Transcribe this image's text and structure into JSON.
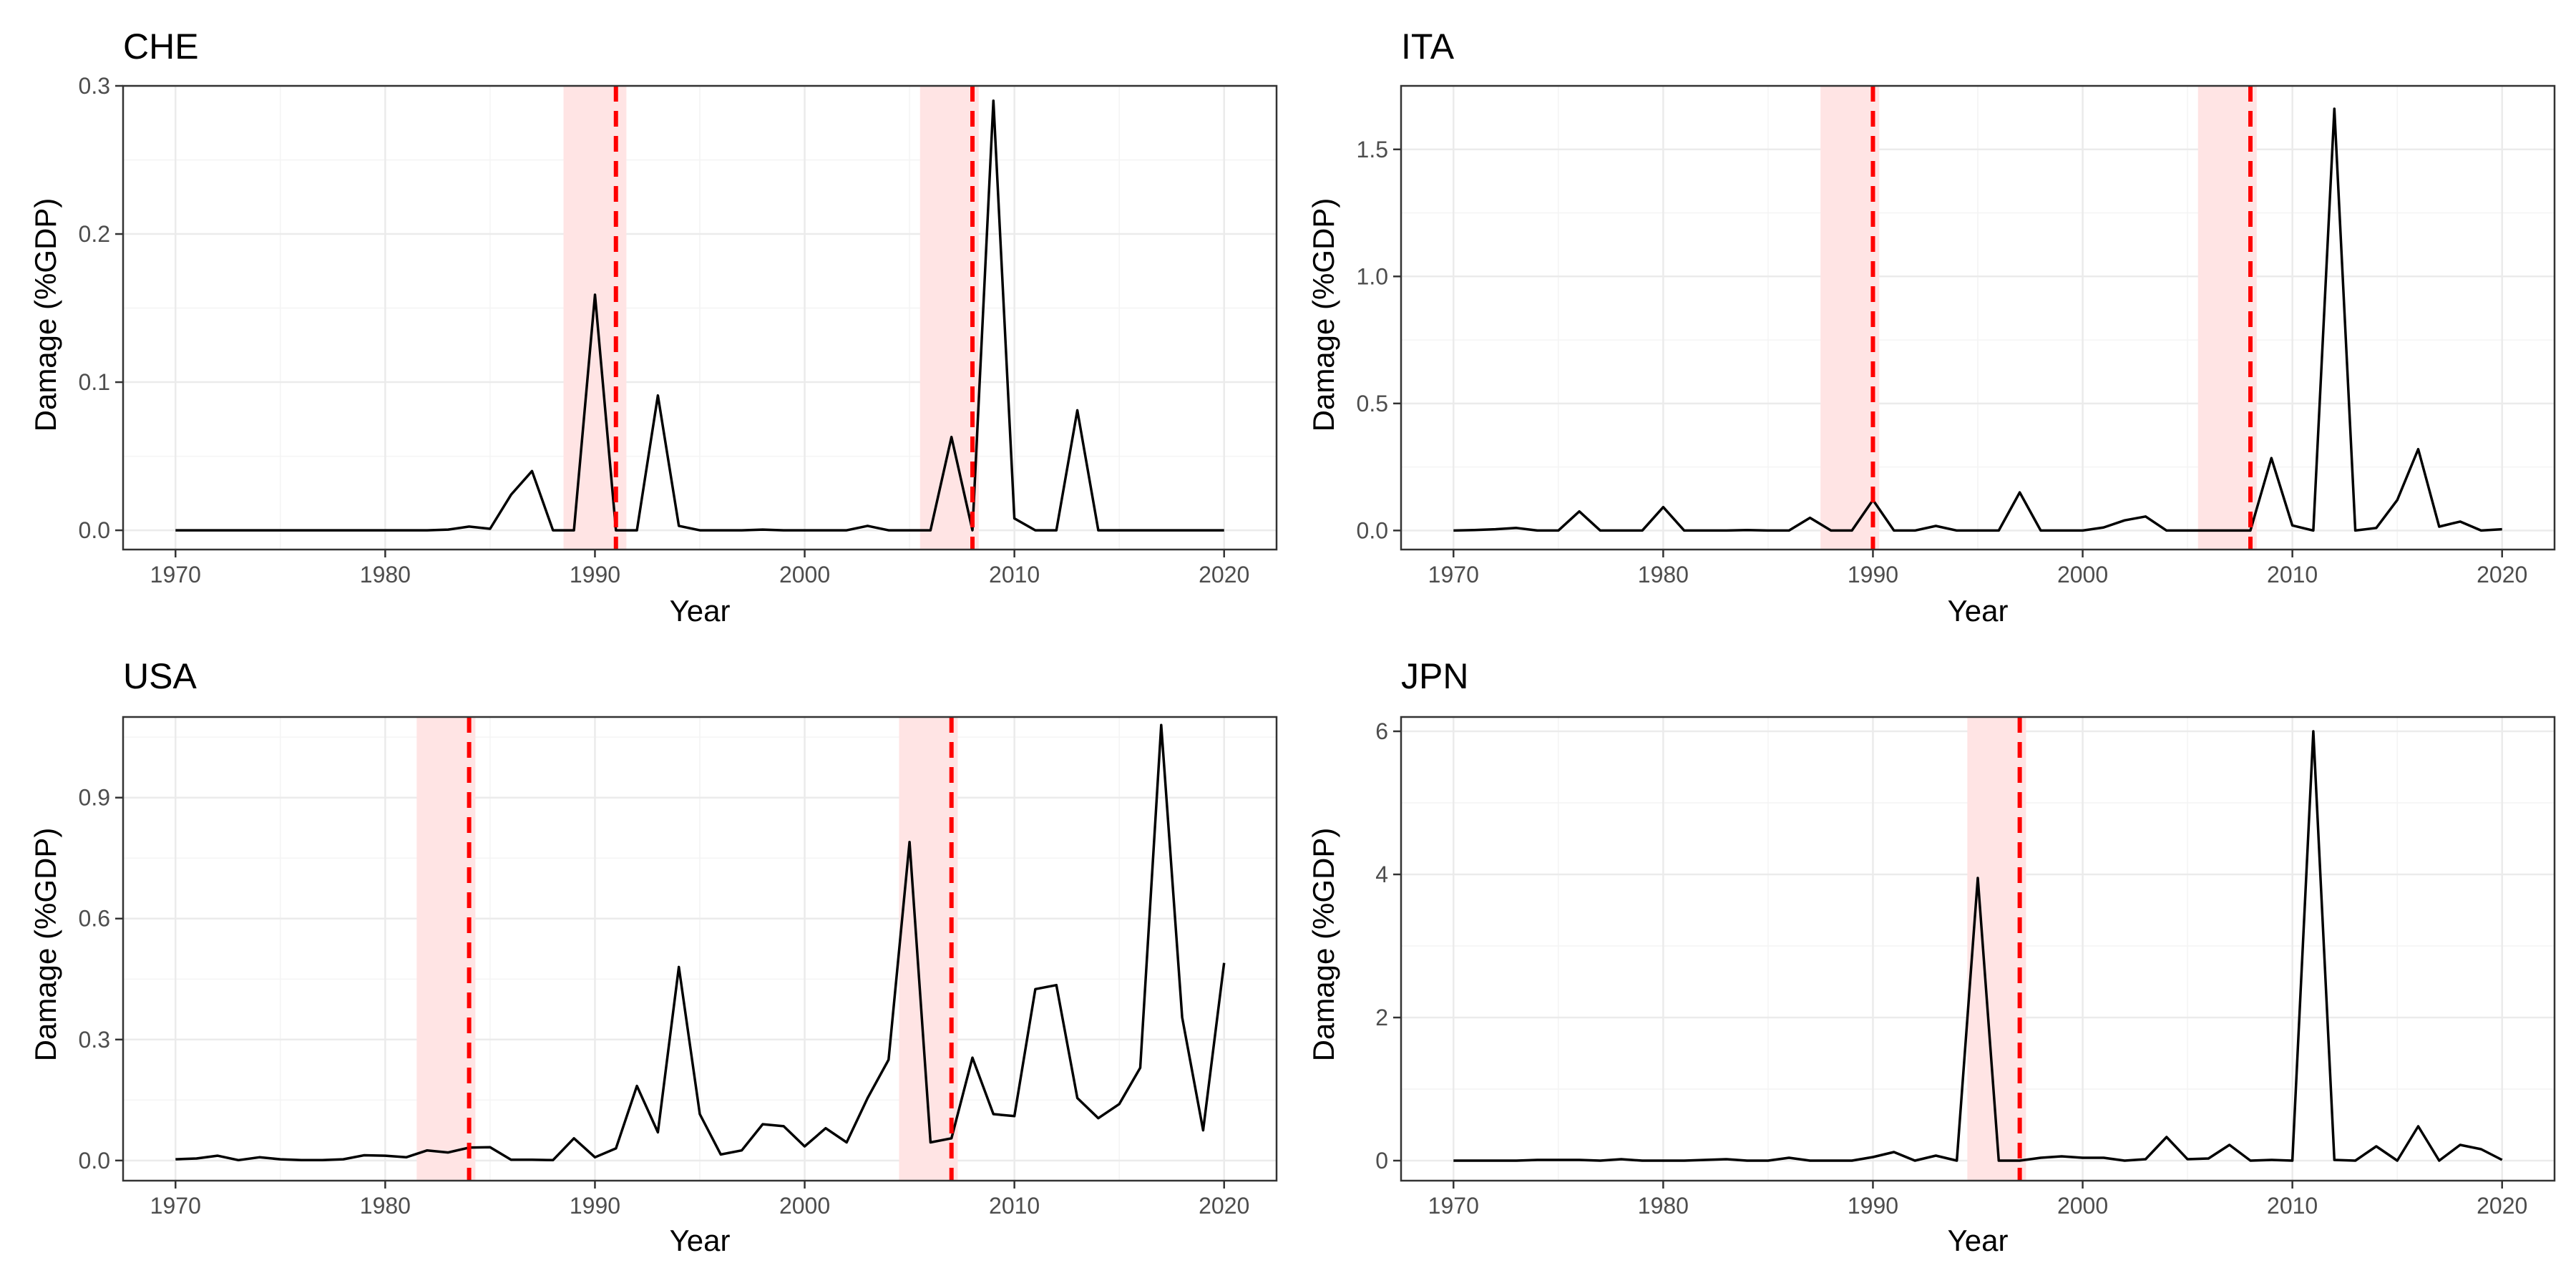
{
  "colors": {
    "line": "#000000",
    "crisis_line": "#ff0000",
    "crisis_band": "#ffe4e4",
    "grid_major": "#ebebeb",
    "grid_minor": "#f4f4f4",
    "panel_border": "#333333",
    "tick_text": "#4d4d4d"
  },
  "chart_data": [
    {
      "type": "line",
      "title": "CHE",
      "xlabel": "Year",
      "ylabel": "Damage (%GDP)",
      "xlim": [
        1967.5,
        2022.5
      ],
      "ylim": [
        -0.013,
        0.3
      ],
      "x_ticks": [
        1970,
        1980,
        1990,
        2000,
        2010,
        2020
      ],
      "x_tick_labels": [
        "1970",
        "1980",
        "1990",
        "2000",
        "2010",
        "2020"
      ],
      "y_ticks": [
        0.0,
        0.1,
        0.2,
        0.3
      ],
      "y_tick_labels": [
        "0.0",
        "0.1",
        "0.2",
        "0.3"
      ],
      "grid": true,
      "crisis_bands": [
        [
          1988.5,
          1991.5
        ],
        [
          2005.5,
          2008.3
        ]
      ],
      "crisis_lines": [
        1991,
        2008
      ],
      "series": [
        {
          "x": [
            1970,
            1971,
            1972,
            1973,
            1974,
            1975,
            1976,
            1977,
            1978,
            1979,
            1980,
            1981,
            1982,
            1983,
            1984,
            1985,
            1986,
            1987,
            1988,
            1989,
            1990,
            1991,
            1992,
            1993,
            1994,
            1995,
            1996,
            1997,
            1998,
            1999,
            2000,
            2001,
            2002,
            2003,
            2004,
            2005,
            2006,
            2007,
            2008,
            2009,
            2010,
            2011,
            2012,
            2013,
            2014,
            2015,
            2016,
            2017,
            2018,
            2019,
            2020
          ],
          "values": [
            0,
            0,
            0,
            0,
            0,
            0,
            0,
            0,
            0,
            0,
            0,
            0,
            0,
            0.0005,
            0.0025,
            0.001,
            0.024,
            0.04,
            0,
            0,
            0.159,
            0,
            0,
            0.091,
            0.003,
            0,
            0,
            0,
            0.0005,
            0,
            0,
            0,
            0,
            0.003,
            0,
            0,
            0,
            0.063,
            0,
            0.29,
            0.008,
            0,
            0,
            0.081,
            0,
            0,
            0,
            0,
            0,
            0,
            0
          ]
        }
      ]
    },
    {
      "type": "line",
      "title": "ITA",
      "xlabel": "Year",
      "ylabel": "Damage (%GDP)",
      "xlim": [
        1967.5,
        2022.5
      ],
      "ylim": [
        -0.075,
        1.75
      ],
      "x_ticks": [
        1970,
        1980,
        1990,
        2000,
        2010,
        2020
      ],
      "x_tick_labels": [
        "1970",
        "1980",
        "1990",
        "2000",
        "2010",
        "2020"
      ],
      "y_ticks": [
        0.0,
        0.5,
        1.0,
        1.5
      ],
      "y_tick_labels": [
        "0.0",
        "0.5",
        "1.0",
        "1.5"
      ],
      "grid": true,
      "crisis_bands": [
        [
          1987.5,
          1990.3
        ],
        [
          2005.5,
          2008.3
        ]
      ],
      "crisis_lines": [
        1990,
        2008
      ],
      "series": [
        {
          "x": [
            1970,
            1971,
            1972,
            1973,
            1974,
            1975,
            1976,
            1977,
            1978,
            1979,
            1980,
            1981,
            1982,
            1983,
            1984,
            1985,
            1986,
            1987,
            1988,
            1989,
            1990,
            1991,
            1992,
            1993,
            1994,
            1995,
            1996,
            1997,
            1998,
            1999,
            2000,
            2001,
            2002,
            2003,
            2004,
            2005,
            2006,
            2007,
            2008,
            2009,
            2010,
            2011,
            2012,
            2013,
            2014,
            2015,
            2016,
            2017,
            2018,
            2019,
            2020
          ],
          "values": [
            0,
            0.002,
            0.005,
            0.01,
            0,
            0,
            0.075,
            0,
            0,
            0,
            0.092,
            0,
            0,
            0,
            0.002,
            0,
            0,
            0.05,
            0,
            0,
            0.12,
            0,
            0,
            0.018,
            0,
            0,
            0,
            0.15,
            0,
            0,
            0,
            0.012,
            0.04,
            0.055,
            0,
            0,
            0,
            0,
            0,
            0.285,
            0.02,
            0,
            1.66,
            0,
            0.01,
            0.12,
            0.32,
            0.015,
            0.035,
            0,
            0.005
          ]
        }
      ]
    },
    {
      "type": "line",
      "title": "USA",
      "xlabel": "Year",
      "ylabel": "Damage (%GDP)",
      "xlim": [
        1967.5,
        2022.5
      ],
      "ylim": [
        -0.05,
        1.1
      ],
      "x_ticks": [
        1970,
        1980,
        1990,
        2000,
        2010,
        2020
      ],
      "x_tick_labels": [
        "1970",
        "1980",
        "1990",
        "2000",
        "2010",
        "2020"
      ],
      "y_ticks": [
        0.0,
        0.3,
        0.6,
        0.9
      ],
      "y_tick_labels": [
        "0.0",
        "0.3",
        "0.6",
        "0.9"
      ],
      "grid": true,
      "crisis_bands": [
        [
          1981.5,
          1984.3
        ],
        [
          2004.5,
          2007.3
        ]
      ],
      "crisis_lines": [
        1984,
        2007
      ],
      "series": [
        {
          "x": [
            1970,
            1971,
            1972,
            1973,
            1974,
            1975,
            1976,
            1977,
            1978,
            1979,
            1980,
            1981,
            1982,
            1983,
            1984,
            1985,
            1986,
            1987,
            1988,
            1989,
            1990,
            1991,
            1992,
            1993,
            1994,
            1995,
            1996,
            1997,
            1998,
            1999,
            2000,
            2001,
            2002,
            2003,
            2004,
            2005,
            2006,
            2007,
            2008,
            2009,
            2010,
            2011,
            2012,
            2013,
            2014,
            2015,
            2016,
            2017,
            2018,
            2019,
            2020
          ],
          "values": [
            0.003,
            0.005,
            0.012,
            0.001,
            0.008,
            0.003,
            0.001,
            0.001,
            0.003,
            0.013,
            0.012,
            0.008,
            0.025,
            0.02,
            0.032,
            0.033,
            0.002,
            0.002,
            0.001,
            0.055,
            0.008,
            0.03,
            0.185,
            0.07,
            0.48,
            0.115,
            0.015,
            0.025,
            0.09,
            0.085,
            0.035,
            0.08,
            0.045,
            0.155,
            0.25,
            0.79,
            0.045,
            0.055,
            0.255,
            0.115,
            0.11,
            0.425,
            0.435,
            0.155,
            0.105,
            0.14,
            0.23,
            1.08,
            0.355,
            0.075,
            0.49
          ]
        }
      ]
    },
    {
      "type": "line",
      "title": "JPN",
      "xlabel": "Year",
      "ylabel": "Damage (%GDP)",
      "xlim": [
        1967.5,
        2022.5
      ],
      "ylim": [
        -0.28,
        6.2
      ],
      "x_ticks": [
        1970,
        1980,
        1990,
        2000,
        2010,
        2020
      ],
      "x_tick_labels": [
        "1970",
        "1980",
        "1990",
        "2000",
        "2010",
        "2020"
      ],
      "y_ticks": [
        0,
        2,
        4,
        6
      ],
      "y_tick_labels": [
        "0",
        "2",
        "4",
        "6"
      ],
      "grid": true,
      "crisis_bands": [
        [
          1994.5,
          1997.3
        ]
      ],
      "crisis_lines": [
        1997
      ],
      "series": [
        {
          "x": [
            1970,
            1971,
            1972,
            1973,
            1974,
            1975,
            1976,
            1977,
            1978,
            1979,
            1980,
            1981,
            1982,
            1983,
            1984,
            1985,
            1986,
            1987,
            1988,
            1989,
            1990,
            1991,
            1992,
            1993,
            1994,
            1995,
            1996,
            1997,
            1998,
            1999,
            2000,
            2001,
            2002,
            2003,
            2004,
            2005,
            2006,
            2007,
            2008,
            2009,
            2010,
            2011,
            2012,
            2013,
            2014,
            2015,
            2016,
            2017,
            2018,
            2019,
            2020
          ],
          "values": [
            0,
            0,
            0,
            0,
            0.01,
            0.01,
            0.01,
            0,
            0.02,
            0,
            0,
            0,
            0.01,
            0.02,
            0,
            0,
            0.04,
            0,
            0,
            0,
            0.05,
            0.12,
            0,
            0.07,
            0,
            3.95,
            0,
            0,
            0.04,
            0.06,
            0.04,
            0.04,
            0,
            0.02,
            0.33,
            0.02,
            0.03,
            0.22,
            0,
            0.01,
            0,
            6.0,
            0.01,
            0,
            0.2,
            0,
            0.48,
            0,
            0.22,
            0.16,
            0.01
          ]
        }
      ]
    }
  ]
}
